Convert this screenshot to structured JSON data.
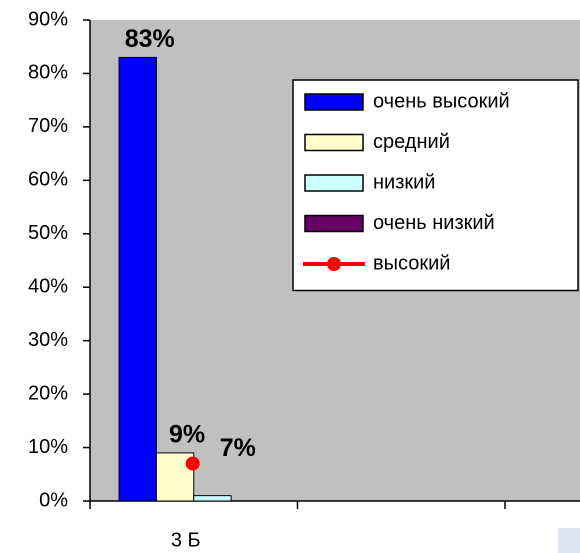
{
  "chart_data": {
    "type": "bar",
    "categories": [
      "3 Б",
      null,
      null
    ],
    "series": [
      {
        "name": "очень высокий",
        "color": "#0000ff",
        "values": [
          83,
          null,
          null
        ],
        "value_labels": [
          "83%",
          null,
          null
        ]
      },
      {
        "name": "средний",
        "color": "#ffffcc",
        "values": [
          9,
          null,
          null
        ],
        "value_labels": [
          "9%",
          null,
          null
        ]
      },
      {
        "name": "низкий",
        "color": "#ccffff",
        "values": [
          1,
          null,
          null
        ]
      },
      {
        "name": "очень низкий",
        "color": "#660066",
        "values": [
          0,
          null,
          null
        ]
      },
      {
        "name": "высокий",
        "type": "line",
        "color": "#ff0000",
        "values": [
          7,
          null,
          null
        ],
        "value_labels": [
          "7%",
          null,
          null
        ]
      }
    ],
    "ylim": [
      0,
      90
    ],
    "yticks": [
      {
        "value": 0,
        "label": "0%"
      },
      {
        "value": 10,
        "label": "10%"
      },
      {
        "value": 20,
        "label": "20%"
      },
      {
        "value": 30,
        "label": "30%"
      },
      {
        "value": 40,
        "label": "40%"
      },
      {
        "value": 50,
        "label": "50%"
      },
      {
        "value": 60,
        "label": "60%"
      },
      {
        "value": 70,
        "label": "70%"
      },
      {
        "value": 80,
        "label": "80%"
      },
      {
        "value": 90,
        "label": "90%"
      }
    ],
    "legend": "right"
  }
}
